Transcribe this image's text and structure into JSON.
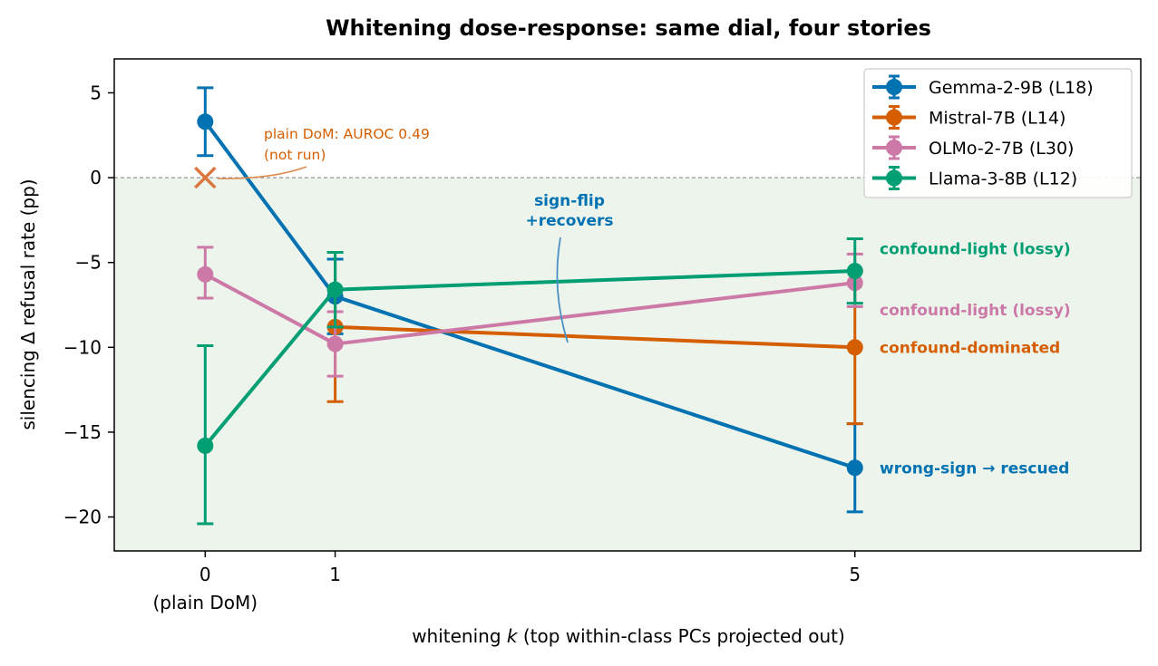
{
  "chart_data": {
    "type": "line",
    "title": "Whitening dose-response: same dial, four stories",
    "xlabel_prefix": "whitening ",
    "xlabel_var": "k",
    "xlabel_suffix": " (top within-class PCs projected out)",
    "ylabel": "silencing Δ refusal rate (pp)",
    "xlim": [
      -0.7,
      7.2
    ],
    "ylim": [
      -22,
      7
    ],
    "x_ticks": [
      {
        "value": 0,
        "label": "0",
        "sublabel": "(plain DoM)"
      },
      {
        "value": 1,
        "label": "1"
      },
      {
        "value": 5,
        "label": "5"
      }
    ],
    "y_ticks": [
      {
        "value": 5,
        "label": "5"
      },
      {
        "value": 0,
        "label": "0"
      },
      {
        "value": -5,
        "label": "−5"
      },
      {
        "value": -10,
        "label": "−10"
      },
      {
        "value": -15,
        "label": "−15"
      },
      {
        "value": -20,
        "label": "−20"
      }
    ],
    "shade_below_zero": true,
    "shade_color": "#edf4ec",
    "zero_line": true,
    "legend_position": "upper right",
    "series": [
      {
        "name": "Gemma-2-9B (L18)",
        "color": "#0072b2",
        "x": [
          0,
          1,
          5
        ],
        "y": [
          3.3,
          -7.0,
          -17.1
        ],
        "err_low": [
          1.3,
          -9.2,
          -19.7
        ],
        "err_high": [
          5.3,
          -4.8,
          -14.5
        ]
      },
      {
        "name": "Mistral-7B (L14)",
        "color": "#d55e00",
        "x": [
          1,
          5
        ],
        "y": [
          -8.8,
          -10.0
        ],
        "err_low": [
          -13.2,
          -14.5
        ],
        "err_high": [
          -4.4,
          -5.5
        ]
      },
      {
        "name": "OLMo-2-7B (L30)",
        "color": "#cc79a7",
        "x": [
          0,
          1,
          5
        ],
        "y": [
          -5.7,
          -9.8,
          -6.2
        ],
        "err_low": [
          -7.1,
          -11.7,
          -7.6
        ],
        "err_high": [
          -4.1,
          -7.9,
          -4.5
        ]
      },
      {
        "name": "Llama-3-8B (L12)",
        "color": "#009e73",
        "x": [
          0,
          1,
          5
        ],
        "y": [
          -15.8,
          -6.6,
          -5.5
        ],
        "err_low": [
          -20.4,
          -8.8,
          -7.4
        ],
        "err_high": [
          -9.9,
          -4.4,
          -3.6
        ]
      }
    ],
    "not_run_marker": {
      "x": 0,
      "y": 0,
      "color": "#d9773d"
    },
    "annotations": [
      {
        "id": "plain-dom",
        "lines": [
          "plain DoM: AUROC 0.49",
          "(not run)"
        ],
        "color": "#d55e00"
      },
      {
        "id": "sign-flip",
        "lines": [
          "sign-flip",
          "+recovers"
        ],
        "color": "#0072b2"
      },
      {
        "id": "llama-story",
        "text": "confound-light (lossy)",
        "color": "#009e73",
        "y": -4.2
      },
      {
        "id": "olmo-story",
        "text": "confound-light (lossy)",
        "color": "#cc79a7",
        "y": -7.8
      },
      {
        "id": "mistral-story",
        "text": "confound-dominated",
        "color": "#d55e00",
        "y": -10.0
      },
      {
        "id": "gemma-story",
        "text": "wrong-sign → rescued",
        "color": "#0072b2",
        "y": -17.1
      }
    ]
  }
}
